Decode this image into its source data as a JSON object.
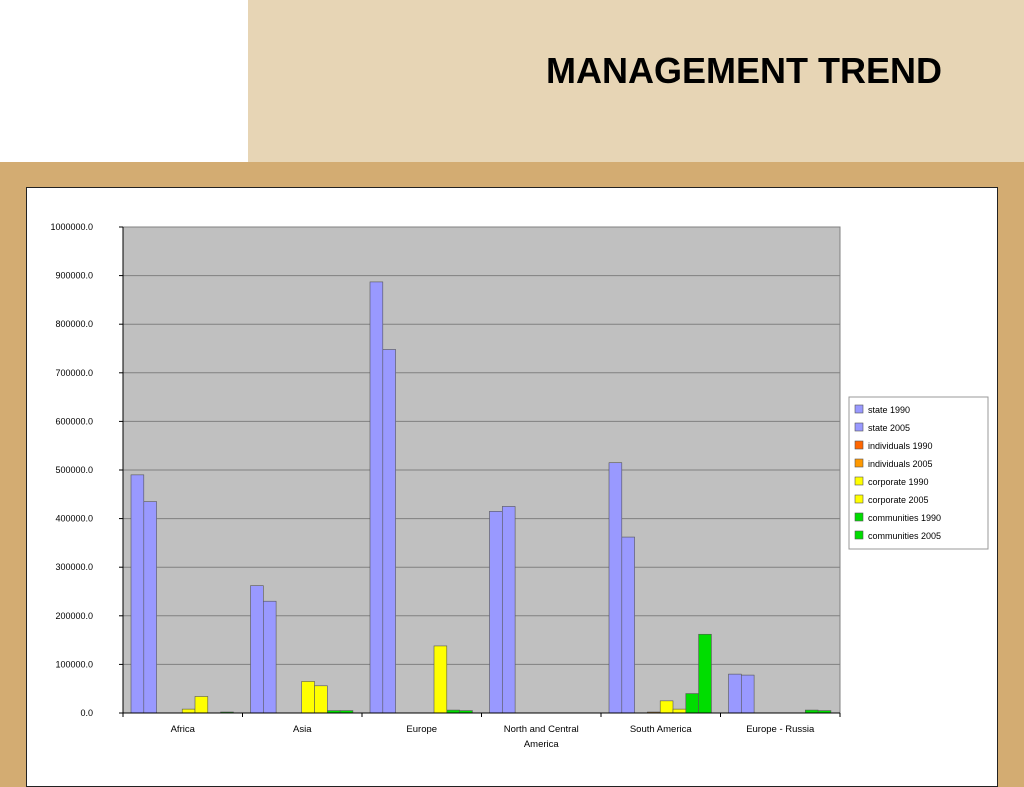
{
  "slide": {
    "title": "MANAGEMENT TREND"
  },
  "colors": {
    "plot_background": "#c0c0c0",
    "gridline": "#808080",
    "state": "#9999ff",
    "individuals_1990": "#ff6600",
    "individuals_2005": "#ff9900",
    "corporate": "#ffff00",
    "communities": "#00dd00"
  },
  "chart_data": {
    "type": "bar",
    "title": "",
    "xlabel": "",
    "ylabel": "",
    "ylim": [
      0,
      1000000
    ],
    "yticks": [
      "0.0",
      "100000.0",
      "200000.0",
      "300000.0",
      "400000.0",
      "500000.0",
      "600000.0",
      "700000.0",
      "800000.0",
      "900000.0",
      "1000000.0"
    ],
    "grid": true,
    "legend_position": "right",
    "categories": [
      "Africa",
      "Asia",
      "Europe",
      "North and Central America",
      "South America",
      "Europe - Russia"
    ],
    "category_label_lines": [
      [
        "Africa"
      ],
      [
        "Asia"
      ],
      [
        "Europe"
      ],
      [
        "North and Central",
        "America"
      ],
      [
        "South America"
      ],
      [
        "Europe - Russia"
      ]
    ],
    "series": [
      {
        "name": "state 1990",
        "color": "#9999ff",
        "values": [
          490000,
          262000,
          887000,
          415000,
          515000,
          80000
        ]
      },
      {
        "name": "state 2005",
        "color": "#9999ff",
        "values": [
          435000,
          230000,
          748000,
          425000,
          362000,
          78000
        ]
      },
      {
        "name": "individuals 1990",
        "color": "#ff6600",
        "values": [
          0,
          0,
          0,
          0,
          0,
          0
        ]
      },
      {
        "name": "individuals 2005",
        "color": "#ff9900",
        "values": [
          0,
          0,
          0,
          0,
          2000,
          0
        ]
      },
      {
        "name": "corporate 1990",
        "color": "#ffff00",
        "values": [
          8000,
          65000,
          0,
          0,
          25000,
          0
        ]
      },
      {
        "name": "corporate 2005",
        "color": "#ffff00",
        "values": [
          34000,
          56000,
          138000,
          0,
          8000,
          0
        ]
      },
      {
        "name": "communities 1990",
        "color": "#00dd00",
        "values": [
          0,
          5000,
          6000,
          0,
          40000,
          6000
        ]
      },
      {
        "name": "communities 2005",
        "color": "#00dd00",
        "values": [
          2000,
          5000,
          5000,
          0,
          162000,
          5000
        ]
      }
    ]
  }
}
